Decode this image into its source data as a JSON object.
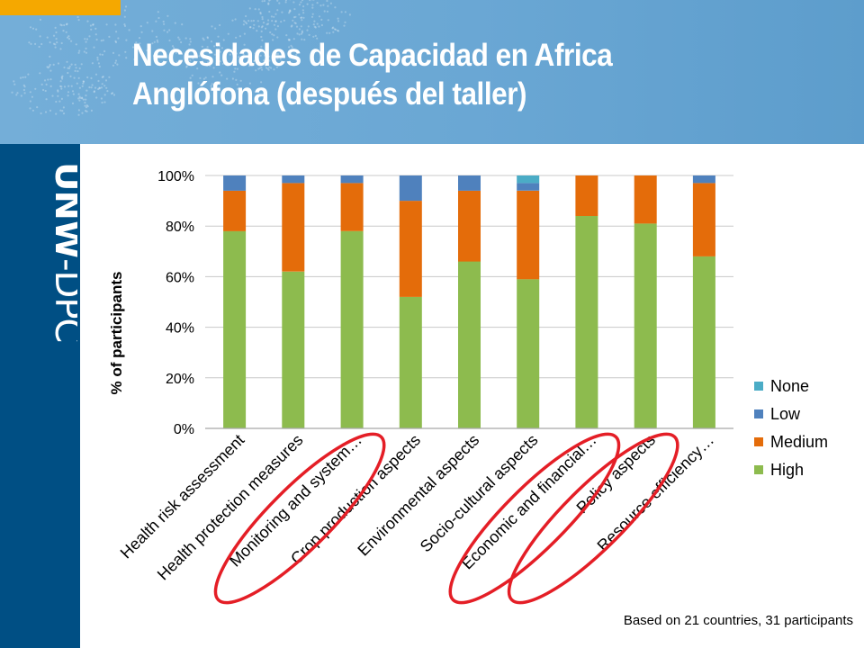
{
  "slide": {
    "title_line1": "Necesidades de Capacidad en Africa",
    "title_line2": "Anglófona (después del taller)",
    "logo_text": "UNW-DPC",
    "footnote": "Based on 21 countries, 31 participants"
  },
  "colors": {
    "none": "#4bacc6",
    "low": "#4f81bd",
    "medium": "#e46c0a",
    "high": "#8dbb4e",
    "highlight": "#e41e26",
    "header_bg": "#6aa7d4",
    "sidebar_bg": "#004f84",
    "accent": "#f5a800"
  },
  "chart_data": {
    "type": "bar",
    "stacked": true,
    "percent": true,
    "ylabel": "% of participants",
    "ylim": [
      0,
      100
    ],
    "yticks": [
      "0%",
      "20%",
      "40%",
      "60%",
      "80%",
      "100%"
    ],
    "grid": true,
    "legend_position": "right",
    "legend": [
      "None",
      "Low",
      "Medium",
      "High"
    ],
    "categories": [
      "Health risk assessment",
      "Health protection measures",
      "Monitoring and system…",
      "Crop production aspects",
      "Environmental aspects",
      "Socio-cultural aspects",
      "Economic and financial…",
      "Policy aspects",
      "Resource efficiency…"
    ],
    "series": [
      {
        "name": "High",
        "key": "high",
        "values": [
          78,
          62,
          78,
          52,
          66,
          59,
          84,
          81,
          68
        ]
      },
      {
        "name": "Medium",
        "key": "medium",
        "values": [
          16,
          35,
          19,
          38,
          28,
          35,
          16,
          19,
          29
        ]
      },
      {
        "name": "Low",
        "key": "low",
        "values": [
          6,
          3,
          3,
          10,
          6,
          3,
          0,
          0,
          3
        ]
      },
      {
        "name": "None",
        "key": "none",
        "values": [
          0,
          0,
          0,
          0,
          0,
          3,
          0,
          0,
          0
        ]
      }
    ],
    "highlighted_categories": [
      "Monitoring and system…",
      "Economic and financial…",
      "Policy aspects"
    ]
  }
}
